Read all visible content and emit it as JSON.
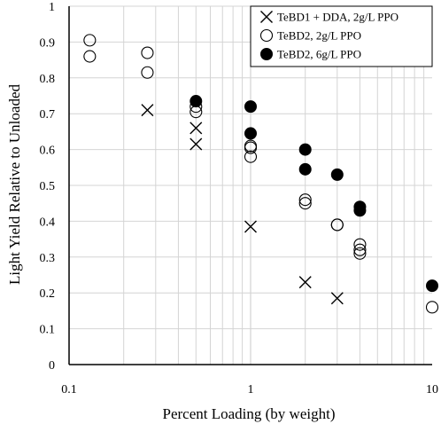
{
  "chart_data": {
    "type": "scatter",
    "title": "",
    "xlabel": "Percent Loading (by weight)",
    "ylabel": "Light Yield Relative to Unloaded",
    "x_scale": "log",
    "xlim": [
      0.1,
      10
    ],
    "ylim": [
      0,
      1
    ],
    "x_ticks": [
      0.1,
      1,
      10
    ],
    "x_tick_labels": [
      "0.1",
      "1",
      "10"
    ],
    "y_ticks": [
      0,
      0.1,
      0.2,
      0.3,
      0.4,
      0.5,
      0.6,
      0.7,
      0.8,
      0.9,
      1
    ],
    "y_tick_labels": [
      "0",
      "0.1",
      "0.2",
      "0.3",
      "0.4",
      "0.5",
      "0.6",
      "0.7",
      "0.8",
      "0.9",
      "1"
    ],
    "grid": true,
    "legend_position": "top-right",
    "series": [
      {
        "name": "TeBD1 + DDA, 2g/L PPO",
        "marker": "x",
        "color": "#000000",
        "points": [
          [
            0.27,
            0.71
          ],
          [
            0.5,
            0.66
          ],
          [
            0.5,
            0.615
          ],
          [
            1,
            0.385
          ],
          [
            2,
            0.23
          ],
          [
            3,
            0.185
          ]
        ]
      },
      {
        "name": "TeBD2, 2g/L PPO",
        "marker": "open-circle",
        "color": "#000000",
        "points": [
          [
            0.13,
            0.905
          ],
          [
            0.13,
            0.86
          ],
          [
            0.27,
            0.87
          ],
          [
            0.27,
            0.815
          ],
          [
            0.5,
            0.72
          ],
          [
            0.5,
            0.705
          ],
          [
            1,
            0.61
          ],
          [
            1,
            0.605
          ],
          [
            1,
            0.58
          ],
          [
            2,
            0.46
          ],
          [
            2,
            0.45
          ],
          [
            3,
            0.39
          ],
          [
            3,
            0.39
          ],
          [
            4,
            0.335
          ],
          [
            4,
            0.32
          ],
          [
            4,
            0.31
          ],
          [
            10,
            0.16
          ]
        ]
      },
      {
        "name": "TeBD2, 6g/L PPO",
        "marker": "filled-circle",
        "color": "#000000",
        "points": [
          [
            0.5,
            0.735
          ],
          [
            1,
            0.72
          ],
          [
            1,
            0.645
          ],
          [
            2,
            0.6
          ],
          [
            2,
            0.545
          ],
          [
            3,
            0.53
          ],
          [
            4,
            0.44
          ],
          [
            4,
            0.43
          ],
          [
            10,
            0.22
          ]
        ]
      }
    ]
  }
}
